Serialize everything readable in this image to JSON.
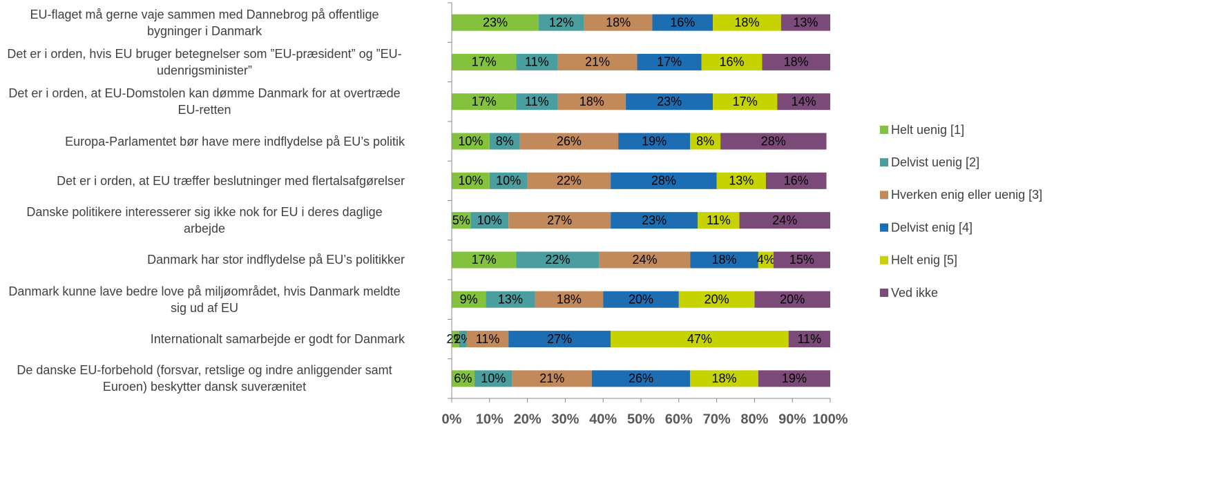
{
  "chart_data": {
    "type": "stacked_barh",
    "categories": [
      "EU-flaget må gerne vaje sammen med Dannebrog på offentlige bygninger i Danmark",
      "Det er i orden, hvis EU bruger betegnelser som ”EU-præsident” og ”EU-udenrigsminister”",
      "Det er i orden, at EU-Domstolen kan dømme Danmark for at overtræde EU-retten",
      "Europa-Parlamentet bør have mere indflydelse på EU’s politik",
      "Det er i orden, at EU træffer beslutninger med flertalsafgørelser",
      "Danske politikere interesserer sig ikke nok for EU i deres daglige arbejde",
      "Danmark har stor indflydelse på EU’s politikker",
      "Danmark kunne lave bedre love på miljøområdet, hvis Danmark meldte sig ud af EU",
      "Internationalt samarbejde er godt for Danmark",
      "De danske EU-forbehold (forsvar, retslige og indre anliggender samt Euroen) beskytter dansk suverænitet"
    ],
    "series": [
      {
        "name": "Helt uenig [1]",
        "color": "#84c13c",
        "values": [
          23,
          17,
          17,
          10,
          10,
          5,
          17,
          9,
          2,
          6
        ],
        "value_labels": [
          "23%",
          "17%",
          "17%",
          "10%",
          "10%",
          "5%",
          "17%",
          "9%",
          "2%",
          "6%"
        ]
      },
      {
        "name": "Delvist uenig [2]",
        "color": "#4b9e9f",
        "values": [
          12,
          11,
          11,
          8,
          10,
          10,
          22,
          13,
          2,
          10
        ],
        "value_labels": [
          "12%",
          "11%",
          "11%",
          "8%",
          "10%",
          "10%",
          "22%",
          "13%",
          "2%",
          "10%"
        ]
      },
      {
        "name": "Hverken enig eller uenig [3]",
        "color": "#c2895a",
        "values": [
          18,
          21,
          18,
          26,
          22,
          27,
          24,
          18,
          11,
          21
        ],
        "value_labels": [
          "18%",
          "21%",
          "18%",
          "26%",
          "22%",
          "27%",
          "24%",
          "18%",
          "11%",
          "21%"
        ]
      },
      {
        "name": "Delvist enig [4]",
        "color": "#1d6db3",
        "values": [
          16,
          17,
          23,
          19,
          28,
          23,
          18,
          20,
          27,
          26
        ],
        "value_labels": [
          "16%",
          "17%",
          "23%",
          "19%",
          "28%",
          "23%",
          "18%",
          "20%",
          "27%",
          "26%"
        ]
      },
      {
        "name": "Helt enig [5]",
        "color": "#c6d300",
        "values": [
          18,
          16,
          17,
          8,
          13,
          11,
          4,
          20,
          47,
          18
        ],
        "value_labels": [
          "18%",
          "16%",
          "17%",
          "8%",
          "13%",
          "11%",
          "4%",
          "20%",
          "47%",
          "18%"
        ]
      },
      {
        "name": "Ved ikke",
        "color": "#7b4a78",
        "values": [
          13,
          18,
          14,
          28,
          16,
          24,
          15,
          20,
          11,
          19
        ],
        "value_labels": [
          "13%",
          "18%",
          "14%",
          "28%",
          "16%",
          "24%",
          "15%",
          "20%",
          "11%",
          "19%"
        ]
      }
    ],
    "xlim": [
      0,
      100
    ],
    "xticks": [
      {
        "value": 0,
        "label": "0%"
      },
      {
        "value": 10,
        "label": "10%"
      },
      {
        "value": 20,
        "label": "20%"
      },
      {
        "value": 30,
        "label": "30%"
      },
      {
        "value": 40,
        "label": "40%"
      },
      {
        "value": 50,
        "label": "50%"
      },
      {
        "value": 60,
        "label": "60%"
      },
      {
        "value": 70,
        "label": "70%"
      },
      {
        "value": 80,
        "label": "80%"
      },
      {
        "value": 90,
        "label": "90%"
      },
      {
        "value": 100,
        "label": "100%"
      }
    ],
    "legend": "right"
  }
}
